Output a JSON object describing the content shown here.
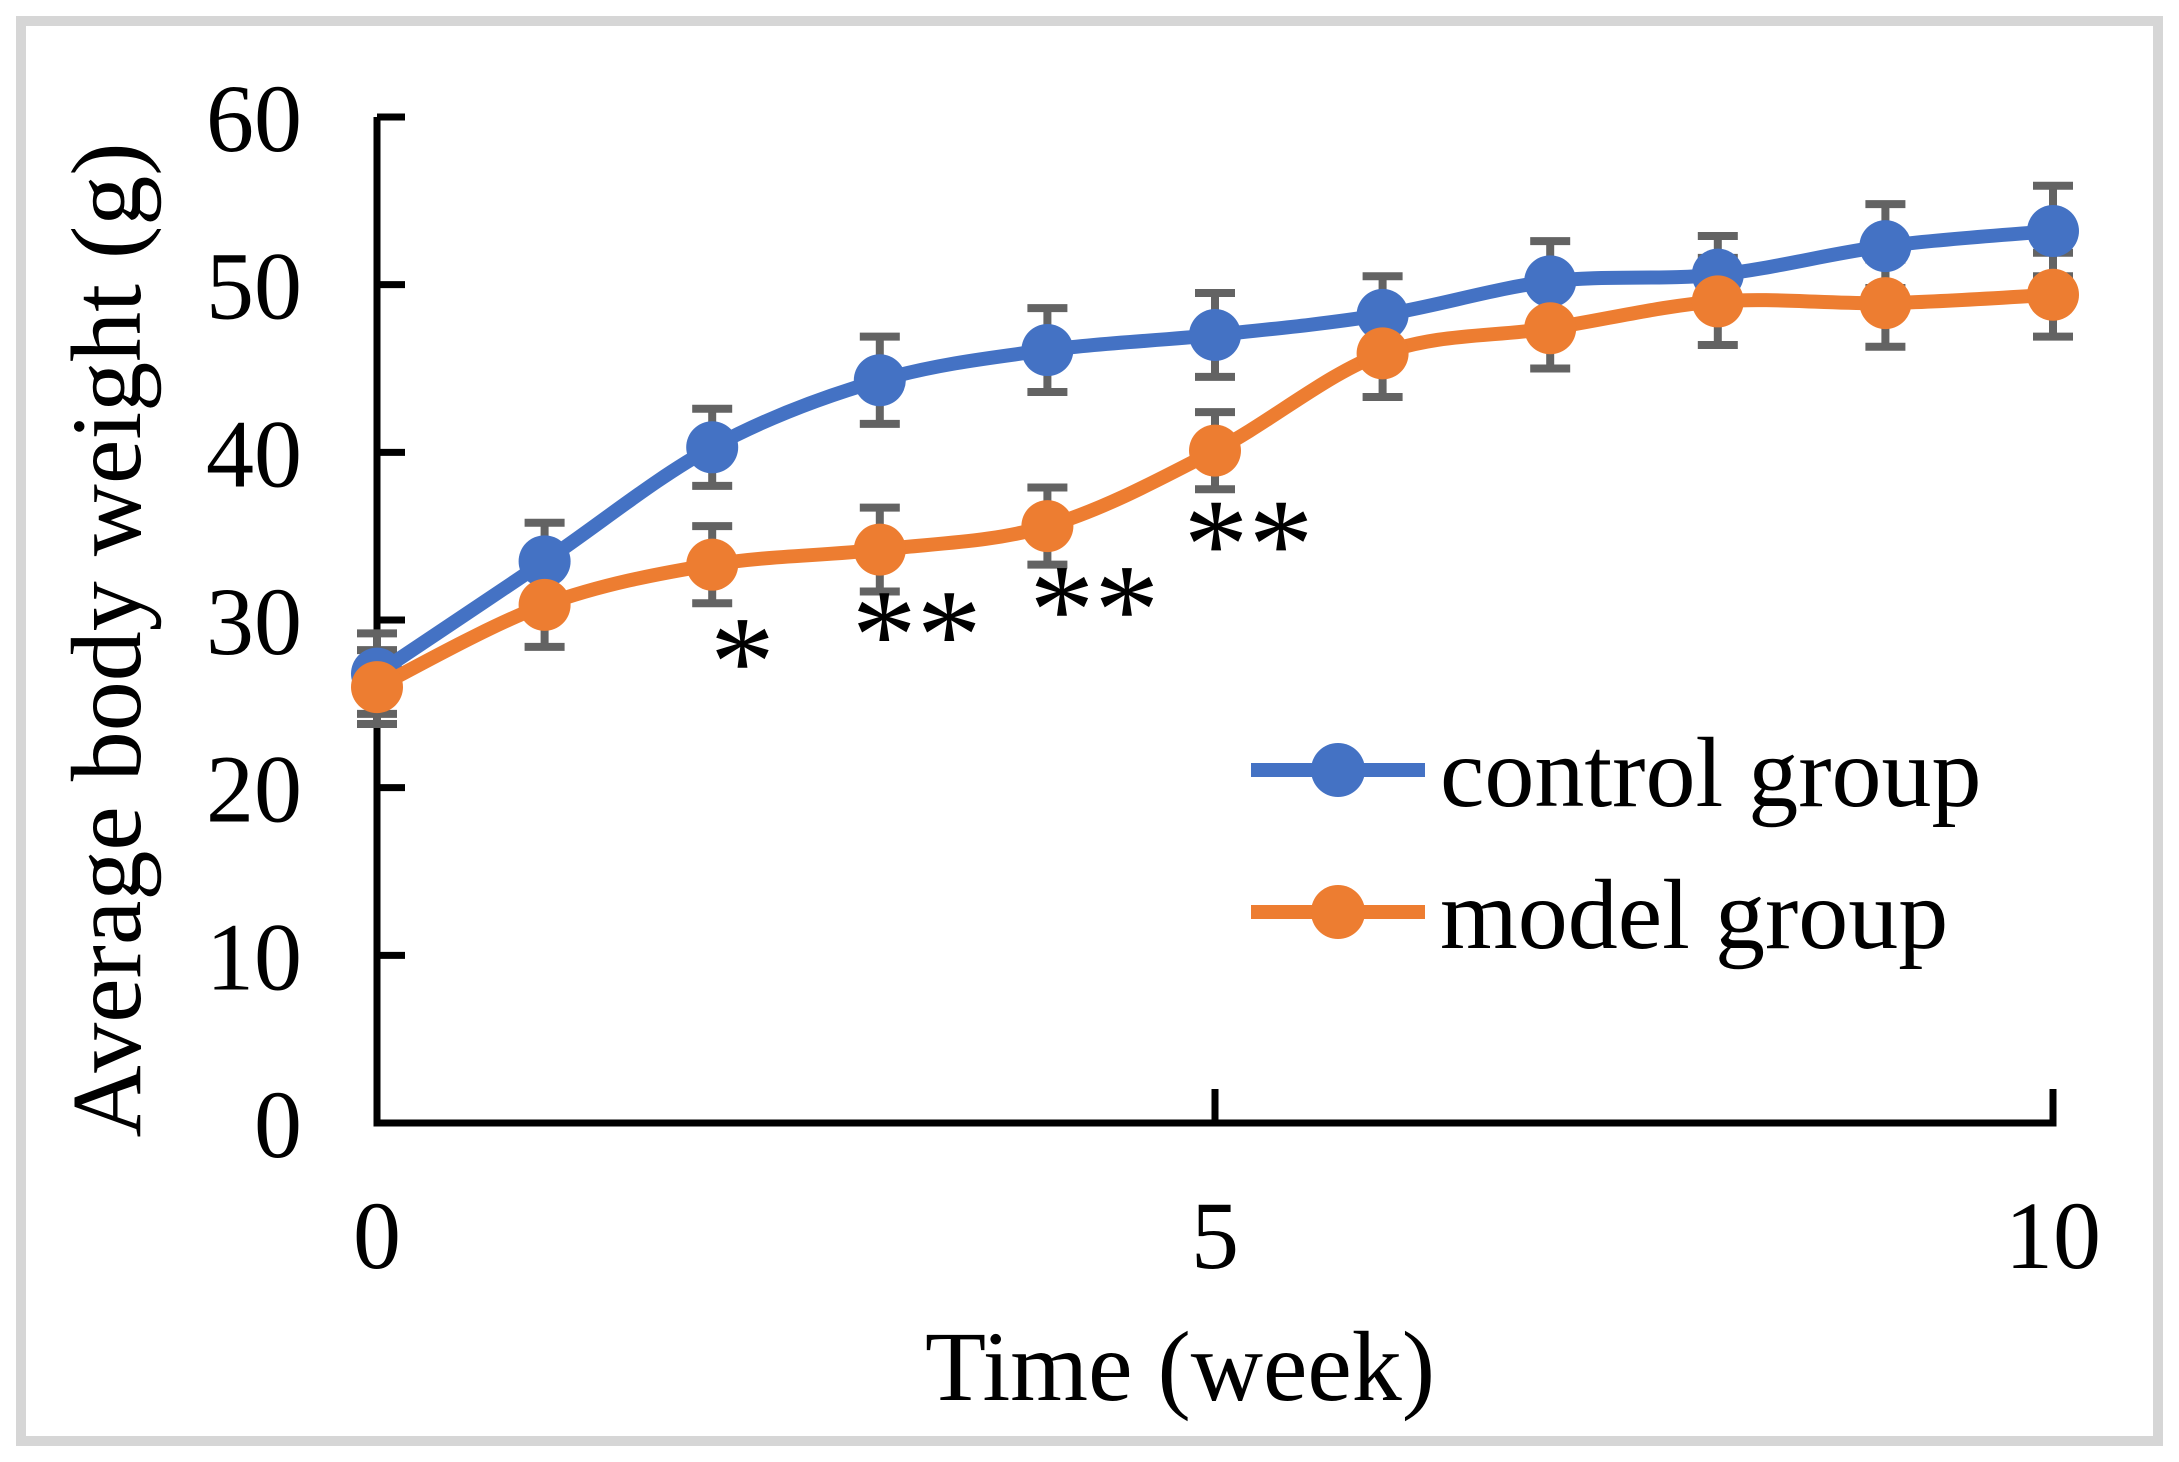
{
  "figure": {
    "background_color": "#ffffff",
    "border_color": "#d6d6d6"
  },
  "chart_data": {
    "type": "line",
    "title": "",
    "xlabel": "Time (week)",
    "ylabel": "Average body weight (g)",
    "xlim": [
      0,
      10
    ],
    "ylim": [
      0,
      60
    ],
    "x_ticks": [
      0,
      5,
      10
    ],
    "y_ticks": [
      0,
      10,
      20,
      30,
      40,
      50,
      60
    ],
    "grid": false,
    "legend_position": "inside middle-right",
    "error_bar_color": "#636363",
    "x": [
      0,
      1,
      2,
      3,
      4,
      5,
      6,
      7,
      8,
      9,
      10
    ],
    "series": [
      {
        "name": "control group",
        "color": "#4472C4",
        "values": [
          26.8,
          33.5,
          40.3,
          44.3,
          46.1,
          47.0,
          48.2,
          50.2,
          50.6,
          52.3,
          53.2
        ],
        "errors": [
          2.4,
          2.3,
          2.3,
          2.6,
          2.5,
          2.5,
          2.3,
          2.4,
          2.3,
          2.5,
          2.7
        ]
      },
      {
        "name": "model group",
        "color": "#ED7D31",
        "values": [
          26.0,
          30.9,
          33.3,
          34.2,
          35.6,
          40.1,
          45.9,
          47.4,
          49.0,
          48.9,
          49.4
        ],
        "errors": [
          2.2,
          2.5,
          2.3,
          2.5,
          2.3,
          2.3,
          2.6,
          2.4,
          2.6,
          2.6,
          2.5
        ]
      }
    ],
    "annotations": [
      {
        "text": "*",
        "x": 2.18,
        "y": 27.6
      },
      {
        "text": "**",
        "x": 3.22,
        "y": 29.2
      },
      {
        "text": "**",
        "x": 4.28,
        "y": 30.7
      },
      {
        "text": "**",
        "x": 5.2,
        "y": 34.6
      }
    ]
  }
}
